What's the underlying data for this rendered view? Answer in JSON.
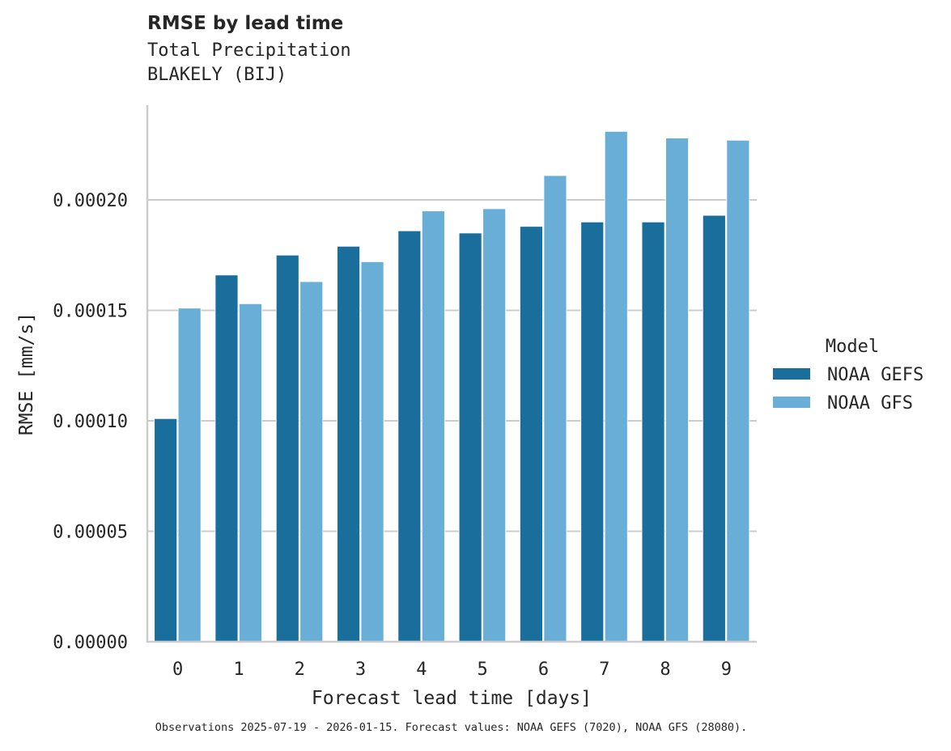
{
  "header": {
    "title": "RMSE by lead time",
    "subtitle_line1": "Total Precipitation",
    "subtitle_line2": "BLAKELY (BIJ)"
  },
  "footer": {
    "text": "Observations 2025-07-19 - 2026-01-15. Forecast values: NOAA GEFS (7020), NOAA GFS (28080)."
  },
  "legend": {
    "title": "Model",
    "items": [
      {
        "label": "NOAA GEFS",
        "color": "#1a6e9c"
      },
      {
        "label": "NOAA GFS",
        "color": "#68aed6"
      }
    ]
  },
  "colors": {
    "grid": "#cccccc",
    "axis": "#cccccc",
    "text": "#262626"
  },
  "chart_data": {
    "type": "bar",
    "title": "RMSE by lead time",
    "subtitle": "Total Precipitation / BLAKELY (BIJ)",
    "xlabel": "Forecast lead time [days]",
    "ylabel": "RMSE [mm/s]",
    "categories": [
      "0",
      "1",
      "2",
      "3",
      "4",
      "5",
      "6",
      "7",
      "8",
      "9"
    ],
    "series": [
      {
        "name": "NOAA GEFS",
        "color": "#1a6e9c",
        "values": [
          0.000101,
          0.000166,
          0.000175,
          0.000179,
          0.000186,
          0.000185,
          0.000188,
          0.00019,
          0.00019,
          0.000193
        ]
      },
      {
        "name": "NOAA GFS",
        "color": "#68aed6",
        "values": [
          0.000151,
          0.000153,
          0.000163,
          0.000172,
          0.000195,
          0.000196,
          0.000211,
          0.000231,
          0.000228,
          0.000227
        ]
      }
    ],
    "yticks": [
      "0.00000",
      "0.00005",
      "0.00010",
      "0.00015",
      "0.00020"
    ],
    "ytick_values": [
      0,
      5e-05,
      0.0001,
      0.00015,
      0.0002
    ],
    "ylim": [
      0,
      0.000243
    ],
    "grid": "horizontal",
    "legend_position": "right"
  }
}
